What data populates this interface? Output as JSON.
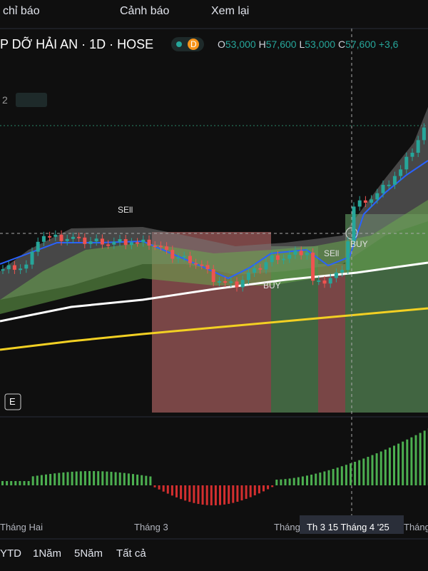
{
  "toolbar": {
    "indicators": "chỉ báo",
    "alerts": "Cảnh báo",
    "replay": "Xem lại"
  },
  "header": {
    "symbol": "P DỠ HẢI AN · 1D · HOSE",
    "badge": "D",
    "open_label": "O",
    "open": "53,000",
    "high_label": "H",
    "high": "57,600",
    "low_label": "L",
    "low": "53,000",
    "close_label": "C",
    "close": "57,600",
    "change": "+3,6"
  },
  "indicator_row": {
    "count": "2"
  },
  "signals": [
    "SEll",
    "BUY",
    "SEll",
    "BUY"
  ],
  "chart_badge": "E",
  "x_axis": {
    "labels": [
      "Tháng Hai",
      "Tháng 3",
      "Tháng",
      "Tháng"
    ],
    "crosshair": "Th 3 15 Tháng 4 '25"
  },
  "bottom_bar": {
    "ranges": [
      "YTD",
      "1Năm",
      "5Năm",
      "Tất cả"
    ]
  }
}
